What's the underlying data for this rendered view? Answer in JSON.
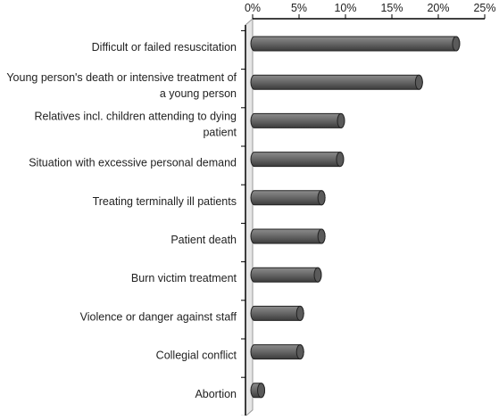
{
  "chart_data": {
    "type": "bar",
    "orientation": "horizontal",
    "categories": [
      "Difficult or failed resuscitation",
      "Young person's death or intensive treatment of a young person",
      "Relatives incl. children attending to dying patient",
      "Situation with excessive personal demand",
      "Treating terminally ill patients",
      "Patient death",
      "Burn victim treatment",
      "Violence or danger against staff",
      "Collegial conflict",
      "Abortion"
    ],
    "category_lines": [
      [
        "Difficult or failed resuscitation"
      ],
      [
        "Young person's death or intensive treatment of",
        "a young person"
      ],
      [
        "Relatives incl. children attending to dying",
        "patient"
      ],
      [
        "Situation with excessive personal demand"
      ],
      [
        "Treating terminally ill patients"
      ],
      [
        "Patient death"
      ],
      [
        "Burn victim treatment"
      ],
      [
        "Violence or danger against staff"
      ],
      [
        "Collegial conflict"
      ],
      [
        "Abortion"
      ]
    ],
    "values": [
      22.3,
      18.3,
      9.9,
      9.8,
      7.8,
      7.8,
      7.4,
      5.5,
      5.5,
      1.3
    ],
    "xlim": [
      0,
      25
    ],
    "xticks": [
      0,
      5,
      10,
      15,
      20,
      25
    ],
    "xtick_labels": [
      "0%",
      "5%",
      "10%",
      "15%",
      "20%",
      "25%"
    ],
    "axis_position": "top",
    "grid": false,
    "legend": "none",
    "title": "",
    "xlabel": "",
    "ylabel": "",
    "colors": {
      "bar": "#6b6b6b",
      "bar_light": "#8a8a8a",
      "bar_dark": "#3a3a3a",
      "axis": "#000000",
      "wall": "#999999"
    }
  }
}
